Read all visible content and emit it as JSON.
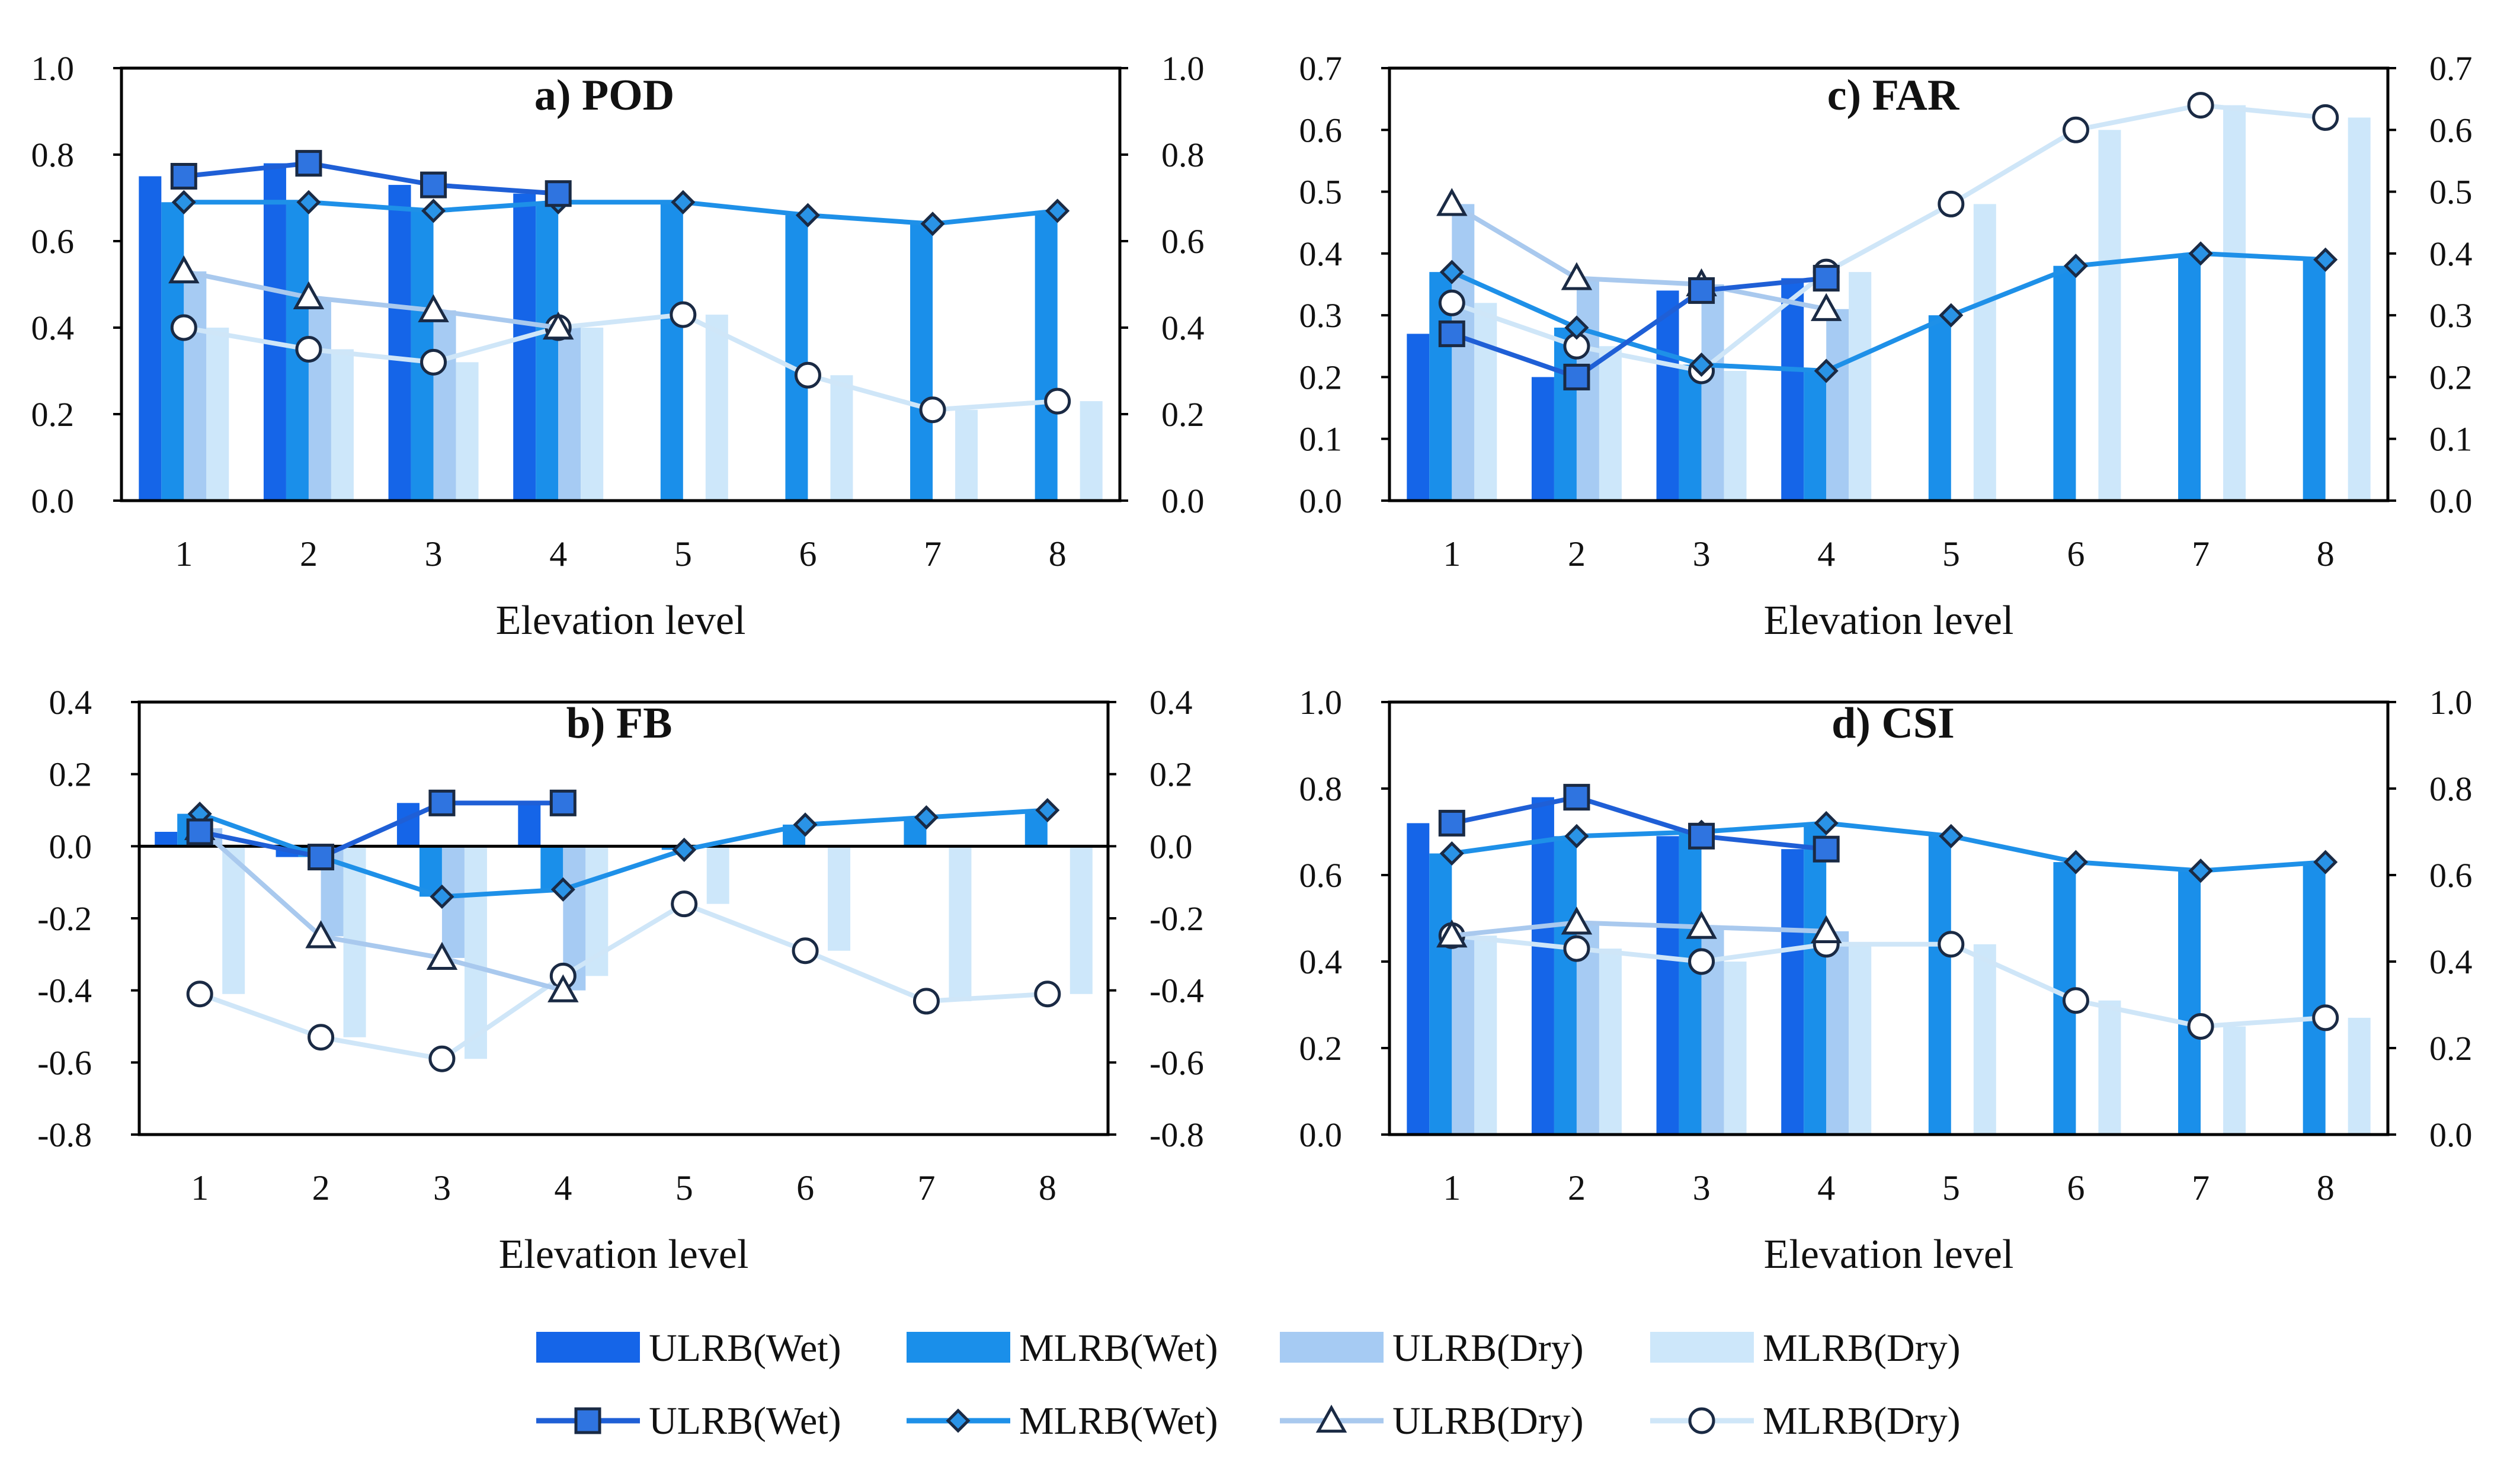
{
  "colors": {
    "ulrb_wet": "#1565E8",
    "mlrb_wet": "#1A8FEA",
    "ulrb_dry": "#A6CBF3",
    "mlrb_dry": "#CDE7FA",
    "line_ulrb_wet": "#1F5FD6",
    "line_mlrb_wet": "#1E90E8",
    "line_ulrb_dry": "#A9C9EE",
    "line_mlrb_dry": "#CFE6F8",
    "axis": "#000000"
  },
  "legend": {
    "bars": [
      "ULRB(Wet)",
      "MLRB(Wet)",
      "ULRB(Dry)",
      "MLRB(Dry)"
    ],
    "lines": [
      "ULRB(Wet)",
      "MLRB(Wet)",
      "ULRB(Dry)",
      "MLRB(Dry)"
    ]
  },
  "chart_data": [
    {
      "id": "pod",
      "type": "bar",
      "title": "a) POD",
      "xlabel": "Elevation level",
      "ylabel": "",
      "categories": [
        "1",
        "2",
        "3",
        "4",
        "5",
        "6",
        "7",
        "8"
      ],
      "ylim": [
        0,
        1.0
      ],
      "yticks": [
        "0.0",
        "0.2",
        "0.4",
        "0.6",
        "0.8",
        "1.0"
      ],
      "series": [
        {
          "name": "ULRB(Wet)",
          "values": [
            0.75,
            0.78,
            0.73,
            0.71,
            null,
            null,
            null,
            null
          ]
        },
        {
          "name": "MLRB(Wet)",
          "values": [
            0.69,
            0.69,
            0.67,
            0.69,
            0.69,
            0.66,
            0.64,
            0.67
          ]
        },
        {
          "name": "ULRB(Dry)",
          "values": [
            0.53,
            0.47,
            0.44,
            0.4,
            null,
            null,
            null,
            null
          ]
        },
        {
          "name": "MLRB(Dry)",
          "values": [
            0.4,
            0.35,
            0.32,
            0.4,
            0.43,
            0.29,
            0.21,
            0.23
          ]
        }
      ]
    },
    {
      "id": "far",
      "type": "bar",
      "title": "c) FAR",
      "xlabel": "Elevation level",
      "ylabel": "",
      "categories": [
        "1",
        "2",
        "3",
        "4",
        "5",
        "6",
        "7",
        "8"
      ],
      "ylim": [
        0,
        0.7
      ],
      "yticks": [
        "0.0",
        "0.1",
        "0.2",
        "0.3",
        "0.4",
        "0.5",
        "0.6",
        "0.7"
      ],
      "series": [
        {
          "name": "ULRB(Wet)",
          "values": [
            0.27,
            0.2,
            0.34,
            0.36,
            null,
            null,
            null,
            null
          ]
        },
        {
          "name": "MLRB(Wet)",
          "values": [
            0.37,
            0.28,
            0.22,
            0.21,
            0.3,
            0.38,
            0.4,
            0.39
          ]
        },
        {
          "name": "ULRB(Dry)",
          "values": [
            0.48,
            0.36,
            0.35,
            0.31,
            null,
            null,
            null,
            null
          ]
        },
        {
          "name": "MLRB(Dry)",
          "values": [
            0.32,
            0.25,
            0.21,
            0.37,
            0.48,
            0.6,
            0.64,
            0.62
          ]
        }
      ]
    },
    {
      "id": "fb",
      "type": "bar",
      "title": "b) FB",
      "xlabel": "Elevation level",
      "ylabel": "",
      "categories": [
        "1",
        "2",
        "3",
        "4",
        "5",
        "6",
        "7",
        "8"
      ],
      "ylim": [
        -0.8,
        0.4
      ],
      "yticks": [
        "-0.8",
        "-0.6",
        "-0.4",
        "-0.2",
        "0.0",
        "0.2",
        "0.4"
      ],
      "series": [
        {
          "name": "ULRB(Wet)",
          "values": [
            0.04,
            -0.03,
            0.12,
            0.12,
            null,
            null,
            null,
            null
          ]
        },
        {
          "name": "MLRB(Wet)",
          "values": [
            0.09,
            -0.03,
            -0.14,
            -0.12,
            -0.01,
            0.06,
            0.08,
            0.1
          ]
        },
        {
          "name": "ULRB(Dry)",
          "values": [
            0.05,
            -0.25,
            -0.31,
            -0.4,
            null,
            null,
            null,
            null
          ]
        },
        {
          "name": "MLRB(Dry)",
          "values": [
            -0.41,
            -0.53,
            -0.59,
            -0.36,
            -0.16,
            -0.29,
            -0.43,
            -0.41
          ]
        }
      ]
    },
    {
      "id": "csi",
      "type": "bar",
      "title": "d) CSI",
      "xlabel": "Elevation level",
      "ylabel": "",
      "categories": [
        "1",
        "2",
        "3",
        "4",
        "5",
        "6",
        "7",
        "8"
      ],
      "ylim": [
        0,
        1.0
      ],
      "yticks": [
        "0.0",
        "0.2",
        "0.4",
        "0.6",
        "0.8",
        "1.0"
      ],
      "series": [
        {
          "name": "ULRB(Wet)",
          "values": [
            0.72,
            0.78,
            0.69,
            0.66,
            null,
            null,
            null,
            null
          ]
        },
        {
          "name": "MLRB(Wet)",
          "values": [
            0.65,
            0.69,
            0.7,
            0.72,
            0.69,
            0.63,
            0.61,
            0.63
          ]
        },
        {
          "name": "ULRB(Dry)",
          "values": [
            0.46,
            0.49,
            0.48,
            0.47,
            null,
            null,
            null,
            null
          ]
        },
        {
          "name": "MLRB(Dry)",
          "values": [
            0.46,
            0.43,
            0.4,
            0.44,
            0.44,
            0.31,
            0.25,
            0.27
          ]
        }
      ]
    }
  ]
}
